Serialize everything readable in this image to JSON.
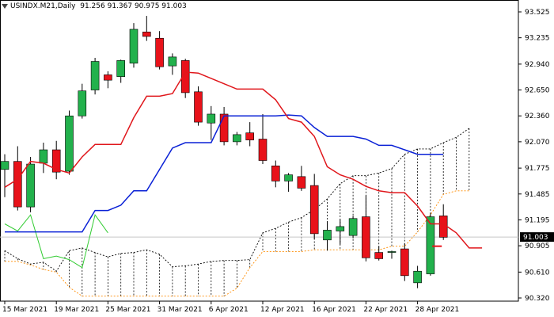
{
  "header": {
    "symbol": "USINDX.M21,Daily",
    "ohlc": "91.256 91.367 90.975 91.003"
  },
  "chart_data": {
    "type": "candlestick",
    "ylim": [
      90.32,
      93.525
    ],
    "y_ticks": [
      "93.525",
      "93.235",
      "92.940",
      "92.650",
      "92.360",
      "92.070",
      "91.775",
      "91.485",
      "91.195",
      "90.905",
      "90.610",
      "90.320"
    ],
    "x_ticks": [
      {
        "label": "15 Mar 2021",
        "i": 0
      },
      {
        "label": "19 Mar 2021",
        "i": 4
      },
      {
        "label": "25 Mar 2021",
        "i": 8
      },
      {
        "label": "31 Mar 2021",
        "i": 12
      },
      {
        "label": "6 Apr 2021",
        "i": 16
      },
      {
        "label": "12 Apr 2021",
        "i": 20
      },
      {
        "label": "16 Apr 2021",
        "i": 24
      },
      {
        "label": "22 Apr 2021",
        "i": 28
      },
      {
        "label": "28 Apr 2021",
        "i": 32
      }
    ],
    "current_price": "91.003",
    "candles": [
      {
        "o": 91.76,
        "h": 91.93,
        "l": 91.45,
        "c": 91.85
      },
      {
        "o": 91.85,
        "h": 92.02,
        "l": 91.3,
        "c": 91.34
      },
      {
        "o": 91.34,
        "h": 91.9,
        "l": 91.28,
        "c": 91.82
      },
      {
        "o": 91.83,
        "h": 92.06,
        "l": 91.72,
        "c": 91.98
      },
      {
        "o": 91.98,
        "h": 92.08,
        "l": 91.65,
        "c": 91.73
      },
      {
        "o": 91.74,
        "h": 92.42,
        "l": 91.7,
        "c": 92.36
      },
      {
        "o": 92.36,
        "h": 92.72,
        "l": 92.33,
        "c": 92.64
      },
      {
        "o": 92.65,
        "h": 93.01,
        "l": 92.6,
        "c": 92.97
      },
      {
        "o": 92.82,
        "h": 92.86,
        "l": 92.67,
        "c": 92.76
      },
      {
        "o": 92.8,
        "h": 92.99,
        "l": 92.73,
        "c": 92.98
      },
      {
        "o": 92.95,
        "h": 93.4,
        "l": 92.9,
        "c": 93.33
      },
      {
        "o": 93.3,
        "h": 93.48,
        "l": 93.2,
        "c": 93.25
      },
      {
        "o": 93.23,
        "h": 93.31,
        "l": 92.88,
        "c": 92.91
      },
      {
        "o": 92.92,
        "h": 93.06,
        "l": 92.82,
        "c": 93.02
      },
      {
        "o": 92.98,
        "h": 93.0,
        "l": 92.56,
        "c": 92.62
      },
      {
        "o": 92.63,
        "h": 92.69,
        "l": 92.25,
        "c": 92.29
      },
      {
        "o": 92.28,
        "h": 92.47,
        "l": 92.09,
        "c": 92.38
      },
      {
        "o": 92.38,
        "h": 92.46,
        "l": 92.03,
        "c": 92.07
      },
      {
        "o": 92.07,
        "h": 92.18,
        "l": 92.03,
        "c": 92.15
      },
      {
        "o": 92.17,
        "h": 92.29,
        "l": 92.02,
        "c": 92.09
      },
      {
        "o": 92.1,
        "h": 92.38,
        "l": 91.82,
        "c": 91.86
      },
      {
        "o": 91.8,
        "h": 91.86,
        "l": 91.56,
        "c": 91.63
      },
      {
        "o": 91.63,
        "h": 91.72,
        "l": 91.51,
        "c": 91.7
      },
      {
        "o": 91.68,
        "h": 91.8,
        "l": 91.52,
        "c": 91.55
      },
      {
        "o": 91.58,
        "h": 91.71,
        "l": 90.98,
        "c": 91.04
      },
      {
        "o": 90.97,
        "h": 91.18,
        "l": 90.85,
        "c": 91.08
      },
      {
        "o": 91.07,
        "h": 91.2,
        "l": 90.92,
        "c": 91.12
      },
      {
        "o": 91.02,
        "h": 91.24,
        "l": 90.99,
        "c": 91.21
      },
      {
        "o": 91.23,
        "h": 91.47,
        "l": 90.73,
        "c": 90.77
      },
      {
        "o": 90.83,
        "h": 90.9,
        "l": 90.74,
        "c": 90.76
      },
      {
        "o": 90.83,
        "h": 90.85,
        "l": 90.76,
        "c": 90.84
      },
      {
        "o": 90.87,
        "h": 90.93,
        "l": 90.51,
        "c": 90.57
      },
      {
        "o": 90.49,
        "h": 90.68,
        "l": 90.43,
        "c": 90.62
      },
      {
        "o": 90.59,
        "h": 91.27,
        "l": 90.57,
        "c": 91.23
      },
      {
        "o": 91.24,
        "h": 91.37,
        "l": 90.97,
        "c": 91.0
      }
    ],
    "tenkan_sen": [
      {
        "x": 0,
        "y": 91.56
      },
      {
        "x": 1,
        "y": 91.65
      },
      {
        "x": 2,
        "y": 91.85
      },
      {
        "x": 3,
        "y": 91.83
      },
      {
        "x": 4,
        "y": 91.76
      },
      {
        "x": 5,
        "y": 91.72
      },
      {
        "x": 6,
        "y": 91.9
      },
      {
        "x": 7,
        "y": 92.04
      },
      {
        "x": 8,
        "y": 92.04
      },
      {
        "x": 9,
        "y": 92.04
      },
      {
        "x": 10,
        "y": 92.34
      },
      {
        "x": 11,
        "y": 92.58
      },
      {
        "x": 12,
        "y": 92.58
      },
      {
        "x": 13,
        "y": 92.61
      },
      {
        "x": 14,
        "y": 92.85
      },
      {
        "x": 15,
        "y": 92.84
      },
      {
        "x": 16,
        "y": 92.78
      },
      {
        "x": 17,
        "y": 92.72
      },
      {
        "x": 18,
        "y": 92.66
      },
      {
        "x": 19,
        "y": 92.66
      },
      {
        "x": 20,
        "y": 92.66
      },
      {
        "x": 21,
        "y": 92.54
      },
      {
        "x": 22,
        "y": 92.33
      },
      {
        "x": 23,
        "y": 92.29
      },
      {
        "x": 24,
        "y": 92.13
      },
      {
        "x": 25,
        "y": 91.79
      },
      {
        "x": 26,
        "y": 91.7
      },
      {
        "x": 27,
        "y": 91.65
      },
      {
        "x": 28,
        "y": 91.57
      },
      {
        "x": 29,
        "y": 91.52
      },
      {
        "x": 30,
        "y": 91.5
      },
      {
        "x": 31,
        "y": 91.5
      },
      {
        "x": 32,
        "y": 91.35
      },
      {
        "x": 33,
        "y": 91.15
      },
      {
        "x": 34,
        "y": 91.15
      },
      {
        "x": 35,
        "y": 91.05
      },
      {
        "x": 36,
        "y": 90.88
      },
      {
        "x": 37,
        "y": 90.88
      }
    ],
    "kijun_sen": [
      {
        "x": 0,
        "y": 91.06
      },
      {
        "x": 3,
        "y": 91.06
      },
      {
        "x": 6,
        "y": 91.06
      },
      {
        "x": 7,
        "y": 91.3
      },
      {
        "x": 8,
        "y": 91.3
      },
      {
        "x": 9,
        "y": 91.36
      },
      {
        "x": 10,
        "y": 91.52
      },
      {
        "x": 11,
        "y": 91.52
      },
      {
        "x": 13,
        "y": 92.0
      },
      {
        "x": 14,
        "y": 92.06
      },
      {
        "x": 15,
        "y": 92.06
      },
      {
        "x": 16,
        "y": 92.06
      },
      {
        "x": 17,
        "y": 92.36
      },
      {
        "x": 18,
        "y": 92.36
      },
      {
        "x": 20,
        "y": 92.36
      },
      {
        "x": 21,
        "y": 92.36
      },
      {
        "x": 22,
        "y": 92.37
      },
      {
        "x": 23,
        "y": 92.36
      },
      {
        "x": 24,
        "y": 92.23
      },
      {
        "x": 25,
        "y": 92.13
      },
      {
        "x": 26,
        "y": 92.13
      },
      {
        "x": 27,
        "y": 92.13
      },
      {
        "x": 28,
        "y": 92.1
      },
      {
        "x": 29,
        "y": 92.03
      },
      {
        "x": 30,
        "y": 92.03
      },
      {
        "x": 31,
        "y": 91.98
      },
      {
        "x": 32,
        "y": 91.93
      },
      {
        "x": 33,
        "y": 91.93
      },
      {
        "x": 34,
        "y": 91.93
      }
    ],
    "chikou_span": [
      {
        "x": 0,
        "y": 91.15
      },
      {
        "x": 1,
        "y": 91.07
      },
      {
        "x": 2,
        "y": 91.25
      },
      {
        "x": 3,
        "y": 90.76
      },
      {
        "x": 4,
        "y": 90.79
      },
      {
        "x": 5,
        "y": 90.75
      },
      {
        "x": 6,
        "y": 90.66
      },
      {
        "x": 7,
        "y": 91.25
      },
      {
        "x": 8,
        "y": 91.05
      }
    ],
    "senkou_span_a": [
      {
        "x": 0,
        "y": 90.85
      },
      {
        "x": 1,
        "y": 90.76
      },
      {
        "x": 2,
        "y": 90.7
      },
      {
        "x": 3,
        "y": 90.72
      },
      {
        "x": 4,
        "y": 90.62
      },
      {
        "x": 5,
        "y": 90.85
      },
      {
        "x": 6,
        "y": 90.88
      },
      {
        "x": 7,
        "y": 90.83
      },
      {
        "x": 8,
        "y": 90.78
      },
      {
        "x": 9,
        "y": 90.82
      },
      {
        "x": 10,
        "y": 90.83
      },
      {
        "x": 11,
        "y": 90.86
      },
      {
        "x": 12,
        "y": 90.81
      },
      {
        "x": 13,
        "y": 90.67
      },
      {
        "x": 14,
        "y": 90.68
      },
      {
        "x": 15,
        "y": 90.7
      },
      {
        "x": 16,
        "y": 90.73
      },
      {
        "x": 17,
        "y": 90.74
      },
      {
        "x": 18,
        "y": 90.74
      },
      {
        "x": 19,
        "y": 90.75
      },
      {
        "x": 20,
        "y": 91.05
      },
      {
        "x": 21,
        "y": 91.1
      },
      {
        "x": 22,
        "y": 91.17
      },
      {
        "x": 23,
        "y": 91.22
      },
      {
        "x": 24,
        "y": 91.31
      },
      {
        "x": 25,
        "y": 91.43
      },
      {
        "x": 26,
        "y": 91.6
      },
      {
        "x": 27,
        "y": 91.69
      },
      {
        "x": 28,
        "y": 91.69
      },
      {
        "x": 29,
        "y": 91.72
      },
      {
        "x": 30,
        "y": 91.77
      },
      {
        "x": 31,
        "y": 91.93
      },
      {
        "x": 32,
        "y": 91.99
      },
      {
        "x": 33,
        "y": 91.99
      },
      {
        "x": 34,
        "y": 92.06
      },
      {
        "x": 35,
        "y": 92.12
      },
      {
        "x": 36,
        "y": 92.22
      }
    ],
    "senkou_span_b": [
      {
        "x": 0,
        "y": 90.73
      },
      {
        "x": 1,
        "y": 90.73
      },
      {
        "x": 2,
        "y": 90.69
      },
      {
        "x": 3,
        "y": 90.64
      },
      {
        "x": 4,
        "y": 90.61
      },
      {
        "x": 5,
        "y": 90.44
      },
      {
        "x": 6,
        "y": 90.34
      },
      {
        "x": 7,
        "y": 90.34
      },
      {
        "x": 8,
        "y": 90.34
      },
      {
        "x": 9,
        "y": 90.34
      },
      {
        "x": 10,
        "y": 90.34
      },
      {
        "x": 11,
        "y": 90.34
      },
      {
        "x": 12,
        "y": 90.34
      },
      {
        "x": 13,
        "y": 90.34
      },
      {
        "x": 14,
        "y": 90.34
      },
      {
        "x": 15,
        "y": 90.34
      },
      {
        "x": 16,
        "y": 90.34
      },
      {
        "x": 17,
        "y": 90.34
      },
      {
        "x": 18,
        "y": 90.43
      },
      {
        "x": 19,
        "y": 90.66
      },
      {
        "x": 20,
        "y": 90.84
      },
      {
        "x": 21,
        "y": 90.84
      },
      {
        "x": 22,
        "y": 90.84
      },
      {
        "x": 23,
        "y": 90.84
      },
      {
        "x": 24,
        "y": 90.86
      },
      {
        "x": 25,
        "y": 90.86
      },
      {
        "x": 26,
        "y": 90.86
      },
      {
        "x": 27,
        "y": 90.86
      },
      {
        "x": 28,
        "y": 90.86
      },
      {
        "x": 29,
        "y": 90.86
      },
      {
        "x": 30,
        "y": 90.9
      },
      {
        "x": 31,
        "y": 90.9
      },
      {
        "x": 32,
        "y": 91.06
      },
      {
        "x": 33,
        "y": 91.25
      },
      {
        "x": 34,
        "y": 91.48
      },
      {
        "x": 35,
        "y": 91.52
      },
      {
        "x": 36,
        "y": 91.52
      }
    ],
    "colors": {
      "bull": "#22b14c",
      "bear": "#e8121a",
      "tenkan": "#e0161b",
      "kijun": "#0a21d6",
      "chikou": "#33cc33",
      "span_a": "#000000",
      "span_b": "#ff8c00",
      "price_box": "#000000",
      "grid_line": "#c8c8c8",
      "current_line": "#e8121a"
    },
    "grid": false
  }
}
